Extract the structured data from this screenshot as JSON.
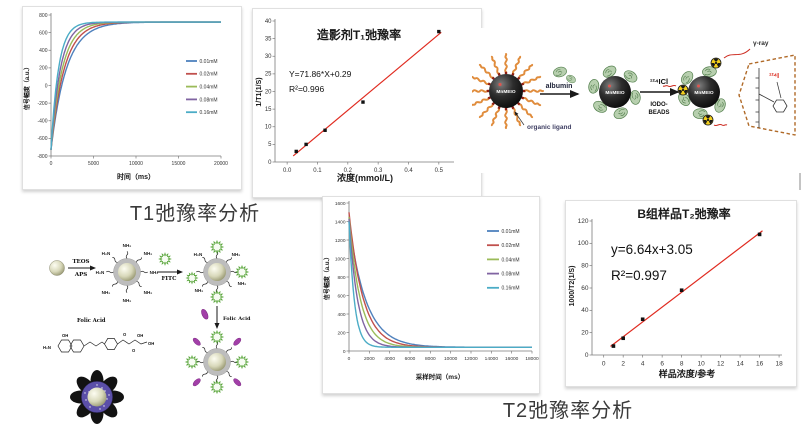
{
  "labels": {
    "t1_section_title": "T1弛豫率分析",
    "t2_section_caption": "T2弛豫率分析"
  },
  "colors": {
    "series_blue": "#4f81bd",
    "series_red": "#c0504d",
    "series_green": "#9bbb59",
    "series_purple": "#8064a2",
    "series_teal": "#4bacc6",
    "fit_line_red": "#e02b20",
    "marker_black": "#111111"
  },
  "chart_data": [
    {
      "id": "t1_recovery_curves",
      "type": "line",
      "title": "",
      "xlabel": "时间（ms）",
      "ylabel": "信号幅度（a.u.）",
      "xlim": [
        0,
        20000
      ],
      "xticks": [
        0,
        5000,
        10000,
        15000,
        20000
      ],
      "ylim": [
        -800,
        800
      ],
      "yticks": [
        -800,
        -600,
        -400,
        -200,
        0,
        200,
        400,
        600,
        800
      ],
      "grid": false,
      "legend_position": "right-inside",
      "model": "S(t) = S_max - (S_max - S_0) * exp(-t / T1)",
      "s_max": 720,
      "s_0": -730,
      "series": [
        {
          "name": "0.01mM",
          "color": "#4f81bd",
          "t1_ms": 1800
        },
        {
          "name": "0.02mM",
          "color": "#c0504d",
          "t1_ms": 1550
        },
        {
          "name": "0.04mM",
          "color": "#9bbb59",
          "t1_ms": 1320
        },
        {
          "name": "0.08mM",
          "color": "#8064a2",
          "t1_ms": 1100
        },
        {
          "name": "0.16mM",
          "color": "#4bacc6",
          "t1_ms": 880
        }
      ]
    },
    {
      "id": "t1_relaxivity_fit",
      "type": "scatter",
      "title": "造影剂T₁弛豫率",
      "xlabel": "浓度(mmol/L)",
      "ylabel": "1/T1(1/S)",
      "xlim": [
        -0.04,
        0.55
      ],
      "xticks": [
        0.0,
        0.1,
        0.2,
        0.3,
        0.4,
        0.5
      ],
      "xtick_labels": [
        "0.0",
        "0.1",
        "0.2",
        "0.3",
        "0.4",
        "0.5"
      ],
      "ylim": [
        0,
        40
      ],
      "yticks": [
        0,
        5,
        10,
        15,
        20,
        25,
        30,
        35,
        40
      ],
      "grid": false,
      "points": [
        [
          0.03,
          3
        ],
        [
          0.0625,
          5
        ],
        [
          0.125,
          9
        ],
        [
          0.25,
          17
        ],
        [
          0.5,
          37
        ]
      ],
      "fit": {
        "equation": "Y=71.86*X+0.29",
        "r2": "R²=0.996",
        "slope": 71.86,
        "intercept": 0.29,
        "x_range": [
          0.02,
          0.508
        ]
      },
      "marker_color": "#111111",
      "line_color": "#e02b20"
    },
    {
      "id": "t2_decay_curves",
      "type": "line",
      "title": "",
      "xlabel": "采样时间（ms）",
      "ylabel": "信号幅度（a.u.）",
      "xlim": [
        0,
        18000
      ],
      "xticks": [
        0,
        2000,
        4000,
        6000,
        8000,
        10000,
        12000,
        14000,
        16000,
        18000
      ],
      "ylim": [
        0,
        1600
      ],
      "yticks": [
        0,
        200,
        400,
        600,
        800,
        1000,
        1200,
        1400,
        1600
      ],
      "grid": false,
      "legend_position": "right-inside",
      "model": "S(t) = S_inf + (S_0 - S_inf) * exp(-t / T2)",
      "s_inf": 40,
      "series": [
        {
          "name": "0.01mM",
          "color": "#4f81bd",
          "s0": 1400,
          "t2_ms": 1680
        },
        {
          "name": "0.02mM",
          "color": "#c0504d",
          "s0": 1500,
          "t2_ms": 1380
        },
        {
          "name": "0.04mM",
          "color": "#9bbb59",
          "s0": 1450,
          "t2_ms": 1120
        },
        {
          "name": "0.08mM",
          "color": "#8064a2",
          "s0": 1430,
          "t2_ms": 850
        },
        {
          "name": "0.16mM",
          "color": "#4bacc6",
          "s0": 1400,
          "t2_ms": 530
        }
      ]
    },
    {
      "id": "t2_relaxivity_fit",
      "type": "scatter",
      "title": "B组样品T₂弛豫率",
      "xlabel": "样品浓度/参考",
      "ylabel": "1000/T2(1/S)",
      "xlim": [
        -1.2,
        18.3
      ],
      "xticks": [
        0,
        2,
        4,
        6,
        8,
        10,
        12,
        14,
        16,
        18
      ],
      "ylim": [
        0,
        120
      ],
      "yticks": [
        0,
        20,
        40,
        60,
        80,
        100,
        120
      ],
      "grid": false,
      "points": [
        [
          1,
          8
        ],
        [
          2,
          15
        ],
        [
          4,
          32
        ],
        [
          8,
          58
        ],
        [
          16,
          108
        ]
      ],
      "fit": {
        "equation": "y=6.64x+3.05",
        "r2": "R²=0.997",
        "slope": 6.64,
        "intercept": 3.05,
        "x_range": [
          0.7,
          16.3
        ]
      },
      "marker_color": "#111111",
      "line_color": "#e02b20"
    }
  ],
  "labeling_diagram": {
    "particle_label": "MnMEIO",
    "step1_label": "albumin",
    "step2_label": "¹²⁴ICl",
    "step2_sub_line1": "IODO-",
    "step2_sub_line2": "BEADS",
    "organic_ligand_label": "organic ligand",
    "gamma_ray_label": "γ-ray",
    "isotope_label": "¹²⁴I"
  },
  "synthesis_diagram": {
    "step1_top": "TEOS",
    "step1_bottom": "APS",
    "step2_label": "FITC",
    "step3_label": "Folic Acid",
    "folic_acid_title": "Folic Acid",
    "amine": "NH₂",
    "amine_rev": "H₂N",
    "structure": {
      "oh": "OH",
      "h2n": "H₂N",
      "o": "O",
      "oh2": "OH",
      "o2": "O",
      "oh3": "OH"
    }
  }
}
